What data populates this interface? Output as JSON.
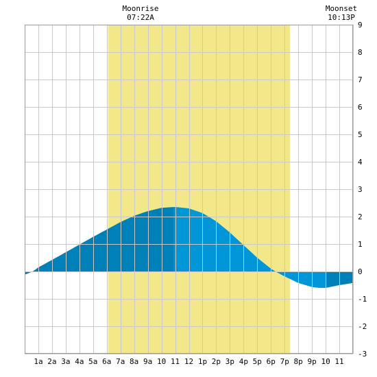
{
  "chart_data": {
    "type": "area",
    "title": "",
    "xlabel": "",
    "ylabel": "",
    "x_tick_labels": [
      "1a",
      "2a",
      "3a",
      "4a",
      "5a",
      "6a",
      "7a",
      "8a",
      "9a",
      "10",
      "11",
      "12",
      "1p",
      "2p",
      "3p",
      "4p",
      "5p",
      "6p",
      "7p",
      "8p",
      "9p",
      "10",
      "11"
    ],
    "xlim": [
      0,
      24
    ],
    "ylim": [
      -3,
      9
    ],
    "y_ticks": [
      -3,
      -2,
      -1,
      0,
      1,
      2,
      3,
      4,
      5,
      6,
      7,
      8,
      9
    ],
    "grid": true,
    "annotations": {
      "moonrise": {
        "label": "Moonrise",
        "time": "07:22A",
        "hour": 6.1
      },
      "moonset": {
        "label": "Moonset",
        "time": "10:13P",
        "hour": 23.9
      }
    },
    "highlight_band": {
      "from": 6.1,
      "to": 19.4,
      "color": "#f2e88a"
    },
    "series": [
      {
        "x": [
          0,
          0.6,
          1,
          2,
          3,
          4,
          5,
          6,
          7,
          8,
          9,
          10,
          10.9,
          11,
          12,
          13,
          14,
          15,
          16,
          17,
          18,
          18.5,
          19,
          20,
          21,
          21.5,
          22,
          23,
          24
        ],
        "y": [
          -0.12,
          0,
          0.15,
          0.42,
          0.7,
          0.98,
          1.26,
          1.53,
          1.8,
          2.03,
          2.2,
          2.32,
          2.35,
          2.35,
          2.3,
          2.13,
          1.83,
          1.42,
          0.96,
          0.5,
          0.1,
          -0.05,
          -0.18,
          -0.42,
          -0.57,
          -0.6,
          -0.6,
          -0.5,
          -0.42
        ]
      }
    ],
    "fill_colors": {
      "dark": "#0080b8",
      "light": "#0096d8"
    },
    "fill_segments": [
      {
        "from": 0,
        "to": 10.9,
        "shade": "dark"
      },
      {
        "from": 10.9,
        "to": 22,
        "shade": "light"
      },
      {
        "from": 22,
        "to": 24,
        "shade": "dark"
      }
    ]
  }
}
